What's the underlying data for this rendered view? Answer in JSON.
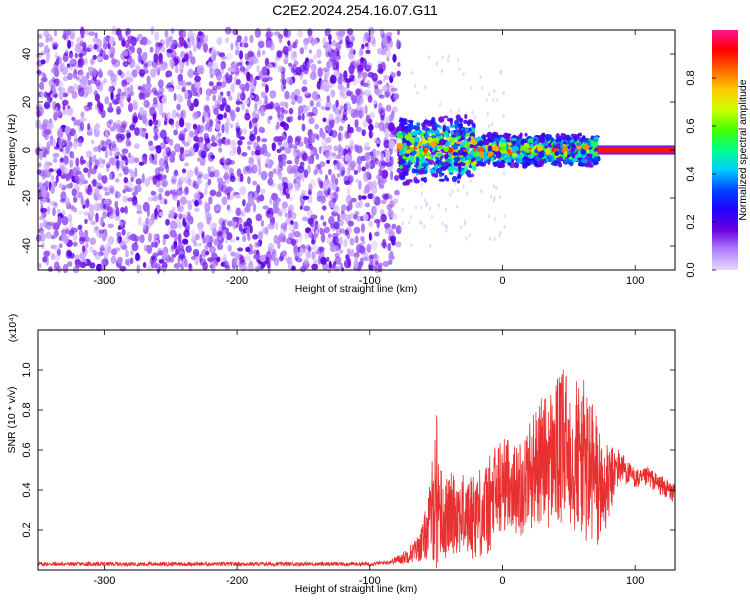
{
  "figure_title": "C2E2.2024.254.16.07.G11",
  "chart_data": [
    {
      "type": "heatmap",
      "title": "C2E2.2024.254.16.07.G11",
      "xlabel": "Height of straight line (km)",
      "ylabel": "Frequency (Hz)",
      "xlim": [
        -350,
        130
      ],
      "ylim": [
        -50,
        50
      ],
      "x_ticks": [
        -300,
        -200,
        -100,
        0,
        100
      ],
      "y_ticks": [
        -40,
        -20,
        0,
        20,
        40
      ],
      "x_tick_labels": [
        "-300",
        "-200",
        "-100",
        "0",
        "100"
      ],
      "y_tick_labels": [
        "-40",
        "-20",
        "0",
        "20",
        "40"
      ],
      "colorbar": {
        "label": "Normalized spectral amplitude",
        "range": [
          0,
          1
        ],
        "ticks": [
          0.0,
          0.2,
          0.4,
          0.6,
          0.8
        ],
        "tick_labels": [
          "0.0",
          "0.2",
          "0.4",
          "0.6",
          "0.8"
        ],
        "colormap": [
          "#e8d8ff",
          "#b080ff",
          "#6a00e0",
          "#2200ff",
          "#0044ff",
          "#00ccff",
          "#00ff88",
          "#44ff00",
          "#ccff00",
          "#ffcc00",
          "#ff6600",
          "#ff0000",
          "#ff1493"
        ]
      },
      "regions": [
        {
          "name": "noise",
          "x_range": [
            -350,
            -78
          ],
          "freq_range": [
            -50,
            50
          ],
          "amplitude_range": [
            0.02,
            0.2
          ]
        },
        {
          "name": "signal",
          "x_range": [
            -78,
            72
          ],
          "freq_center": 0,
          "freq_halfwidth": 12,
          "amplitude_range": [
            0.15,
            1.0
          ]
        },
        {
          "name": "tail",
          "x_range": [
            72,
            130
          ],
          "freq_center": 0,
          "freq_halfwidth": 1.5,
          "amplitude": 0.9
        }
      ],
      "grid": false
    },
    {
      "type": "line",
      "xlabel": "Height of straight line (km)",
      "ylabel": "SNR (10 * v/v)",
      "multiplier": "(x10⁴)",
      "xlim": [
        -350,
        130
      ],
      "ylim": [
        0,
        1.2
      ],
      "x_ticks": [
        -300,
        -200,
        -100,
        0,
        100
      ],
      "y_ticks": [
        0.2,
        0.4,
        0.6,
        0.8,
        1.0
      ],
      "x_tick_labels": [
        "-300",
        "-200",
        "-100",
        "0",
        "100"
      ],
      "y_tick_labels": [
        "0.2",
        "0.4",
        "0.6",
        "0.8",
        "1.0"
      ],
      "color": "#e83030",
      "grid": false,
      "series": [
        {
          "x": [
            -350,
            -300,
            -250,
            -200,
            -150,
            -100,
            -85,
            -75,
            -65,
            -60,
            -55,
            -52,
            -50,
            -48,
            -45,
            -40,
            -35,
            -30,
            -25,
            -20,
            -15,
            -10,
            -5,
            0,
            5,
            10,
            15,
            20,
            25,
            30,
            35,
            40,
            45,
            50,
            55,
            60,
            65,
            70,
            75,
            80,
            85,
            90,
            95,
            100,
            105,
            110,
            115,
            120,
            125,
            130
          ],
          "y": [
            0.03,
            0.03,
            0.03,
            0.03,
            0.03,
            0.03,
            0.04,
            0.06,
            0.1,
            0.14,
            0.24,
            0.34,
            0.4,
            0.36,
            0.24,
            0.28,
            0.3,
            0.28,
            0.26,
            0.3,
            0.28,
            0.32,
            0.38,
            0.42,
            0.45,
            0.4,
            0.42,
            0.48,
            0.52,
            0.55,
            0.55,
            0.58,
            0.6,
            0.62,
            0.58,
            0.56,
            0.5,
            0.45,
            0.4,
            0.42,
            0.5,
            0.52,
            0.48,
            0.46,
            0.45,
            0.47,
            0.44,
            0.42,
            0.4,
            0.38
          ],
          "spread": [
            0.01,
            0.01,
            0.01,
            0.01,
            0.01,
            0.01,
            0.01,
            0.03,
            0.06,
            0.1,
            0.18,
            0.3,
            0.45,
            0.3,
            0.2,
            0.2,
            0.22,
            0.2,
            0.2,
            0.25,
            0.22,
            0.25,
            0.28,
            0.25,
            0.22,
            0.22,
            0.25,
            0.28,
            0.3,
            0.32,
            0.35,
            0.38,
            0.4,
            0.42,
            0.4,
            0.4,
            0.42,
            0.4,
            0.25,
            0.2,
            0.12,
            0.08,
            0.06,
            0.05,
            0.05,
            0.05,
            0.05,
            0.05,
            0.05,
            0.05
          ]
        }
      ]
    }
  ]
}
